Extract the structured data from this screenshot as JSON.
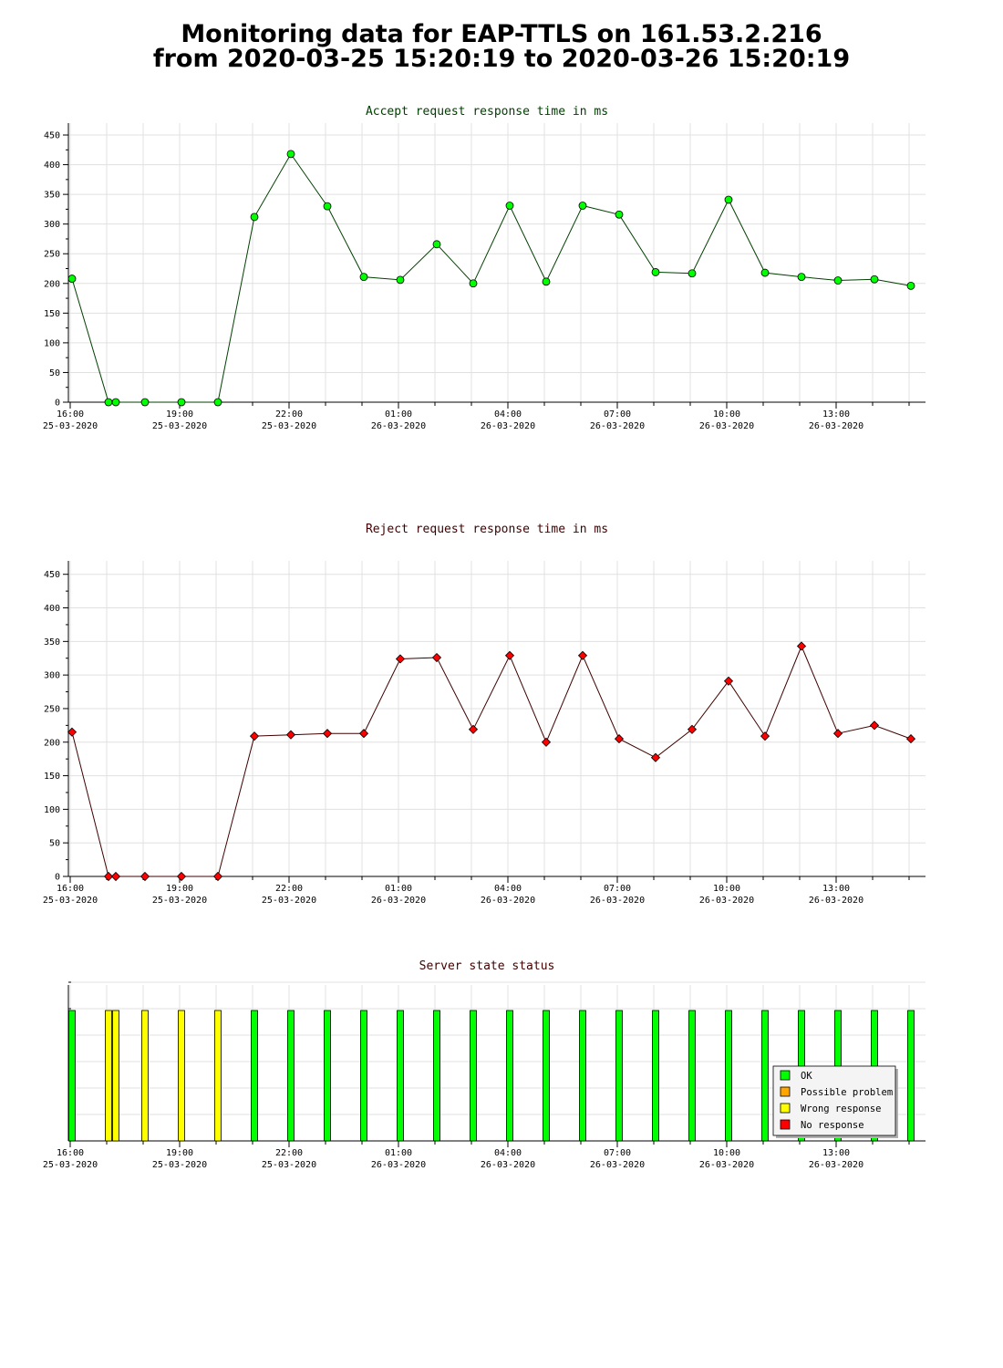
{
  "page": {
    "title_line1": "Monitoring data for EAP-TTLS on 161.53.2.216",
    "title_line2": "from 2020-03-25 15:20:19 to 2020-03-26 15:20:19"
  },
  "x_ticks": [
    {
      "time": "16:00",
      "date": "25-03-2020",
      "x": 16.0
    },
    {
      "time": "19:00",
      "date": "25-03-2020",
      "x": 19.0
    },
    {
      "time": "22:00",
      "date": "25-03-2020",
      "x": 22.0
    },
    {
      "time": "01:00",
      "date": "26-03-2020",
      "x": 25.0
    },
    {
      "time": "04:00",
      "date": "26-03-2020",
      "x": 28.0
    },
    {
      "time": "07:00",
      "date": "26-03-2020",
      "x": 31.0
    },
    {
      "time": "10:00",
      "date": "26-03-2020",
      "x": 34.0
    },
    {
      "time": "13:00",
      "date": "26-03-2020",
      "x": 37.0
    }
  ],
  "chart_data": [
    {
      "type": "line",
      "title": "Accept request response time in ms",
      "color": "#00ff00",
      "line_color": "#004000",
      "title_color": "#004000",
      "xlabel": "",
      "ylabel": "",
      "xlim": [
        15.95,
        39.45
      ],
      "ylim": [
        0,
        470
      ],
      "yticks": [
        0,
        50,
        100,
        150,
        200,
        250,
        300,
        350,
        400,
        450
      ],
      "grid": true,
      "x": [
        16.05,
        17.05,
        17.25,
        18.05,
        19.05,
        20.05,
        21.05,
        22.05,
        23.05,
        24.05,
        25.05,
        26.05,
        27.05,
        28.05,
        29.05,
        30.05,
        31.05,
        32.05,
        33.05,
        34.05,
        35.05,
        36.05,
        37.05,
        38.05,
        39.05
      ],
      "y": [
        208,
        0,
        0,
        0,
        0,
        0,
        312,
        418,
        330,
        211,
        206,
        266,
        200,
        331,
        203,
        331,
        316,
        219,
        217,
        341,
        218,
        211,
        205,
        207,
        196
      ]
    },
    {
      "type": "line",
      "title": "Reject request response time in ms",
      "color": "#ff0000",
      "line_color": "#400000",
      "title_color": "#400000",
      "xlabel": "",
      "ylabel": "",
      "xlim": [
        15.95,
        39.45
      ],
      "ylim": [
        0,
        470
      ],
      "yticks": [
        0,
        50,
        100,
        150,
        200,
        250,
        300,
        350,
        400,
        450
      ],
      "grid": true,
      "x": [
        16.05,
        17.05,
        17.25,
        18.05,
        19.05,
        20.05,
        21.05,
        22.05,
        23.05,
        24.05,
        25.05,
        26.05,
        27.05,
        28.05,
        29.05,
        30.05,
        31.05,
        32.05,
        33.05,
        34.05,
        35.05,
        36.05,
        37.05,
        38.05,
        39.05
      ],
      "y": [
        215,
        0,
        0,
        0,
        0,
        0,
        209,
        211,
        213,
        213,
        324,
        326,
        219,
        329,
        200,
        329,
        205,
        177,
        219,
        291,
        209,
        343,
        213,
        225,
        205
      ]
    },
    {
      "type": "bar",
      "title": "Server state status",
      "title_color": "#400000",
      "xlabel": "",
      "ylabel": "",
      "xlim": [
        15.95,
        39.45
      ],
      "x": [
        16.05,
        17.05,
        17.25,
        18.05,
        19.05,
        20.05,
        21.05,
        22.05,
        23.05,
        24.05,
        25.05,
        26.05,
        27.05,
        28.05,
        29.05,
        30.05,
        31.05,
        32.05,
        33.05,
        34.05,
        35.05,
        36.05,
        37.05,
        38.05,
        39.05
      ],
      "status": [
        "OK",
        "Wrong response",
        "Wrong response",
        "Wrong response",
        "Wrong response",
        "Wrong response",
        "OK",
        "OK",
        "OK",
        "OK",
        "OK",
        "OK",
        "OK",
        "OK",
        "OK",
        "OK",
        "OK",
        "OK",
        "OK",
        "OK",
        "OK",
        "OK",
        "OK",
        "OK",
        "OK"
      ],
      "legend_position": "bottom-right",
      "legend": [
        {
          "label": "OK",
          "color": "#00ff00"
        },
        {
          "label": "Possible problem",
          "color": "#ffa500"
        },
        {
          "label": "Wrong response",
          "color": "#ffff00"
        },
        {
          "label": "No response",
          "color": "#ff0000"
        }
      ]
    }
  ]
}
